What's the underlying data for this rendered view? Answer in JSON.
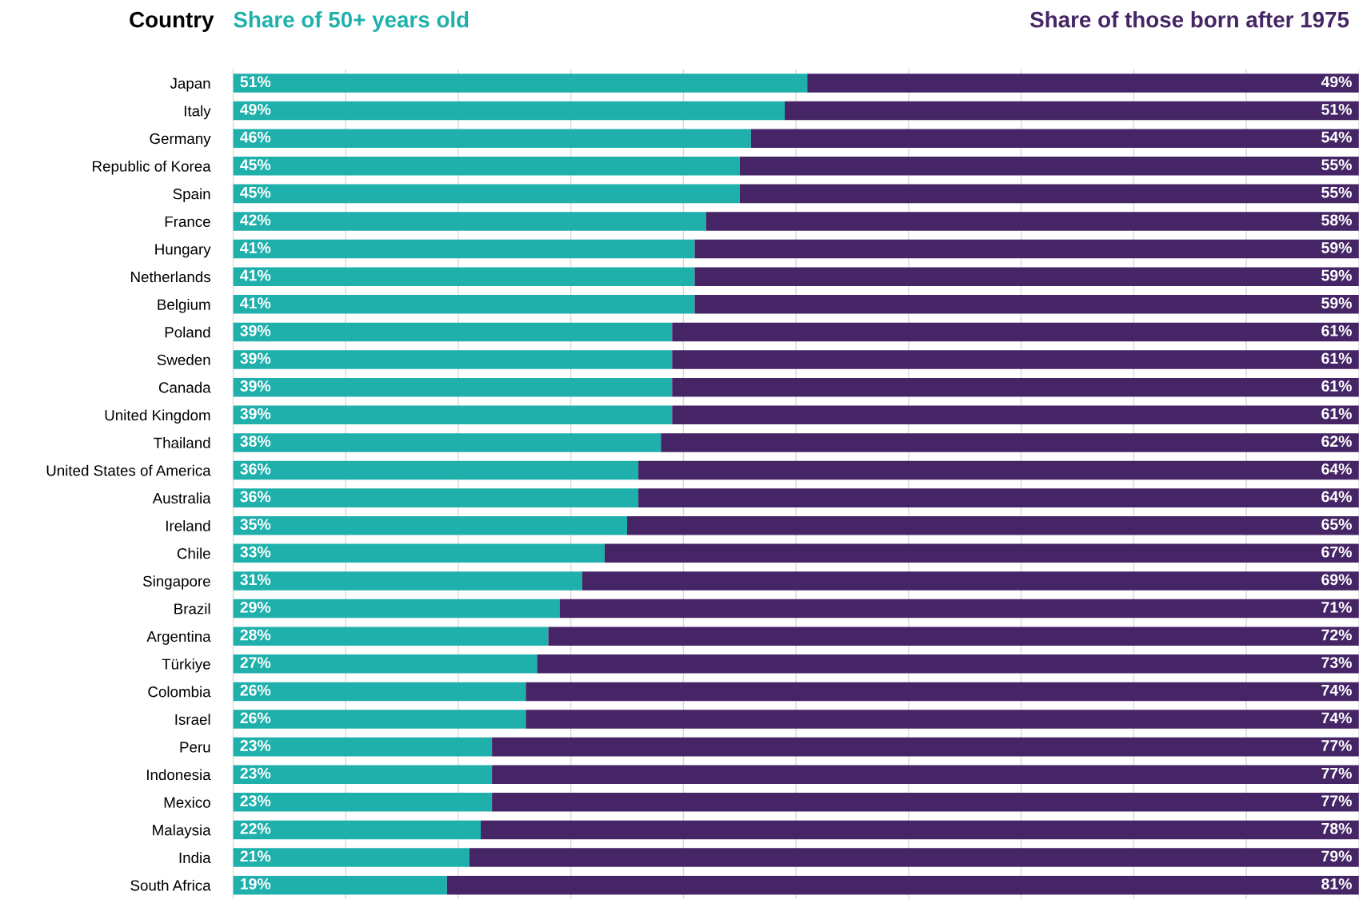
{
  "chart_data": {
    "type": "bar",
    "orientation": "horizontal",
    "stacked": true,
    "ylabel": "Country",
    "categories": [
      "Japan",
      "Italy",
      "Germany",
      "Republic of Korea",
      "Spain",
      "France",
      "Hungary",
      "Netherlands",
      "Belgium",
      "Poland",
      "Sweden",
      "Canada",
      "United Kingdom",
      "Thailand",
      "United States of America",
      "Australia",
      "Ireland",
      "Chile",
      "Singapore",
      "Brazil",
      "Argentina",
      "Türkiye",
      "Colombia",
      "Israel",
      "Peru",
      "Indonesia",
      "Mexico",
      "Malaysia",
      "India",
      "South Africa"
    ],
    "series": [
      {
        "name": "Share of 50+ years old",
        "color": "#1fb0ac",
        "values": [
          51,
          49,
          46,
          45,
          45,
          42,
          41,
          41,
          41,
          39,
          39,
          39,
          39,
          38,
          36,
          36,
          35,
          33,
          31,
          29,
          28,
          27,
          26,
          26,
          23,
          23,
          23,
          22,
          21,
          19
        ],
        "value_labels": [
          "51%",
          "49%",
          "46%",
          "45%",
          "45%",
          "42%",
          "41%",
          "41%",
          "41%",
          "39%",
          "39%",
          "39%",
          "39%",
          "38%",
          "36%",
          "36%",
          "35%",
          "33%",
          "31%",
          "29%",
          "28%",
          "27%",
          "26%",
          "26%",
          "23%",
          "23%",
          "23%",
          "22%",
          "21%",
          "19%"
        ]
      },
      {
        "name": "Share of those born after 1975",
        "color": "#452565",
        "values": [
          49,
          51,
          54,
          55,
          55,
          58,
          59,
          59,
          59,
          61,
          61,
          61,
          61,
          62,
          64,
          64,
          65,
          67,
          69,
          71,
          72,
          73,
          74,
          74,
          77,
          77,
          77,
          78,
          79,
          81
        ],
        "value_labels": [
          "49%",
          "51%",
          "54%",
          "55%",
          "55%",
          "58%",
          "59%",
          "59%",
          "59%",
          "61%",
          "61%",
          "61%",
          "61%",
          "62%",
          "64%",
          "64%",
          "65%",
          "67%",
          "69%",
          "71%",
          "72%",
          "73%",
          "74%",
          "74%",
          "77%",
          "77%",
          "77%",
          "78%",
          "79%",
          "81%"
        ]
      }
    ],
    "grid": "x",
    "tick_labels": "y"
  }
}
